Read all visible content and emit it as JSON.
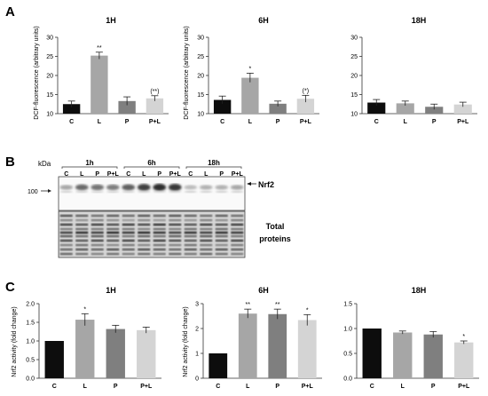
{
  "figure": {
    "panel_labels": [
      "A",
      "B",
      "C"
    ]
  },
  "chart_data": [
    {
      "type": "bar",
      "panel": "A",
      "title": "1H",
      "ylabel": "DCF-fluorescence (arbitrary units)",
      "categories": [
        "C",
        "L",
        "P",
        "P+L"
      ],
      "values": [
        12.5,
        25.2,
        13.3,
        14.0
      ],
      "errors": [
        0.8,
        0.9,
        1.1,
        0.7
      ],
      "significance": [
        "",
        "**",
        "",
        "(**)"
      ],
      "ylim": [
        10,
        30
      ],
      "yticks": [
        10,
        15,
        20,
        25,
        30
      ],
      "colors": [
        "#0d0d0d",
        "#a6a6a6",
        "#7f7f7f",
        "#d4d4d4"
      ]
    },
    {
      "type": "bar",
      "panel": "A",
      "title": "6H",
      "ylabel": "DCF-fluorescence (arbitrary units)",
      "categories": [
        "C",
        "L",
        "P",
        "P+L"
      ],
      "values": [
        13.6,
        19.4,
        12.6,
        13.9
      ],
      "errors": [
        1.0,
        1.2,
        0.7,
        0.9
      ],
      "significance": [
        "",
        "*",
        "",
        "(*)"
      ],
      "ylim": [
        10,
        30
      ],
      "yticks": [
        10,
        15,
        20,
        25,
        30
      ],
      "colors": [
        "#0d0d0d",
        "#a6a6a6",
        "#7f7f7f",
        "#d4d4d4"
      ]
    },
    {
      "type": "bar",
      "panel": "A",
      "title": "18H",
      "ylabel": "",
      "categories": [
        "C",
        "L",
        "P",
        "P+L"
      ],
      "values": [
        12.9,
        12.7,
        11.8,
        12.4
      ],
      "errors": [
        0.8,
        0.6,
        0.7,
        0.6
      ],
      "significance": [
        "",
        "",
        "",
        ""
      ],
      "ylim": [
        10,
        30
      ],
      "yticks": [
        10,
        15,
        20,
        25,
        30
      ],
      "colors": [
        "#0d0d0d",
        "#a6a6a6",
        "#7f7f7f",
        "#d4d4d4"
      ]
    },
    {
      "type": "bar",
      "panel": "C",
      "title": "1H",
      "ylabel": "Nrf2 activity (fold change)",
      "categories": [
        "C",
        "L",
        "P",
        "P+L"
      ],
      "values": [
        1.0,
        1.57,
        1.32,
        1.29
      ],
      "errors": [
        0.0,
        0.16,
        0.1,
        0.08
      ],
      "significance": [
        "",
        "*",
        "",
        ""
      ],
      "ylim": [
        0,
        2.0
      ],
      "yticks": [
        0.0,
        0.5,
        1.0,
        1.5,
        2.0
      ],
      "ytick_labels": [
        "0.0",
        "0.5",
        "1.0",
        "1.5",
        "2.0"
      ],
      "colors": [
        "#0d0d0d",
        "#a6a6a6",
        "#7f7f7f",
        "#d4d4d4"
      ]
    },
    {
      "type": "bar",
      "panel": "C",
      "title": "6H",
      "ylabel": "Nrf2 activity (fold change)",
      "categories": [
        "C",
        "L",
        "P",
        "P+L"
      ],
      "values": [
        1.0,
        2.6,
        2.58,
        2.34
      ],
      "errors": [
        0.0,
        0.18,
        0.2,
        0.22
      ],
      "significance": [
        "",
        "**",
        "**",
        "*"
      ],
      "ylim": [
        0,
        3
      ],
      "yticks": [
        0,
        1,
        2,
        3
      ],
      "ytick_labels": [
        "0",
        "1",
        "2",
        "3"
      ],
      "colors": [
        "#0d0d0d",
        "#a6a6a6",
        "#7f7f7f",
        "#d4d4d4"
      ]
    },
    {
      "type": "bar",
      "panel": "C",
      "title": "18H",
      "ylabel": "",
      "categories": [
        "C",
        "L",
        "P",
        "P+L"
      ],
      "values": [
        1.0,
        0.92,
        0.88,
        0.72
      ],
      "errors": [
        0.0,
        0.03,
        0.06,
        0.03
      ],
      "significance": [
        "",
        "",
        "",
        "*"
      ],
      "ylim": [
        0,
        1.5
      ],
      "yticks": [
        0.0,
        0.5,
        1.0,
        1.5
      ],
      "ytick_labels": [
        "0.0",
        "0.5",
        "1.0",
        "1.5"
      ],
      "colors": [
        "#0d0d0d",
        "#a6a6a6",
        "#7f7f7f",
        "#d4d4d4"
      ]
    }
  ],
  "blot": {
    "kda_label": "kDa",
    "marker_label": "100",
    "groups": [
      "1h",
      "6h",
      "18h"
    ],
    "lanes": [
      "C",
      "L",
      "P",
      "P+L",
      "C",
      "L",
      "P",
      "P+L",
      "C",
      "L",
      "P",
      "P+L"
    ],
    "band_label": "Nrf2",
    "total_label": [
      "Total",
      "proteins"
    ],
    "band_intensity": [
      0.35,
      0.65,
      0.6,
      0.55,
      0.7,
      0.85,
      0.95,
      0.9,
      0.25,
      0.3,
      0.3,
      0.35
    ]
  }
}
